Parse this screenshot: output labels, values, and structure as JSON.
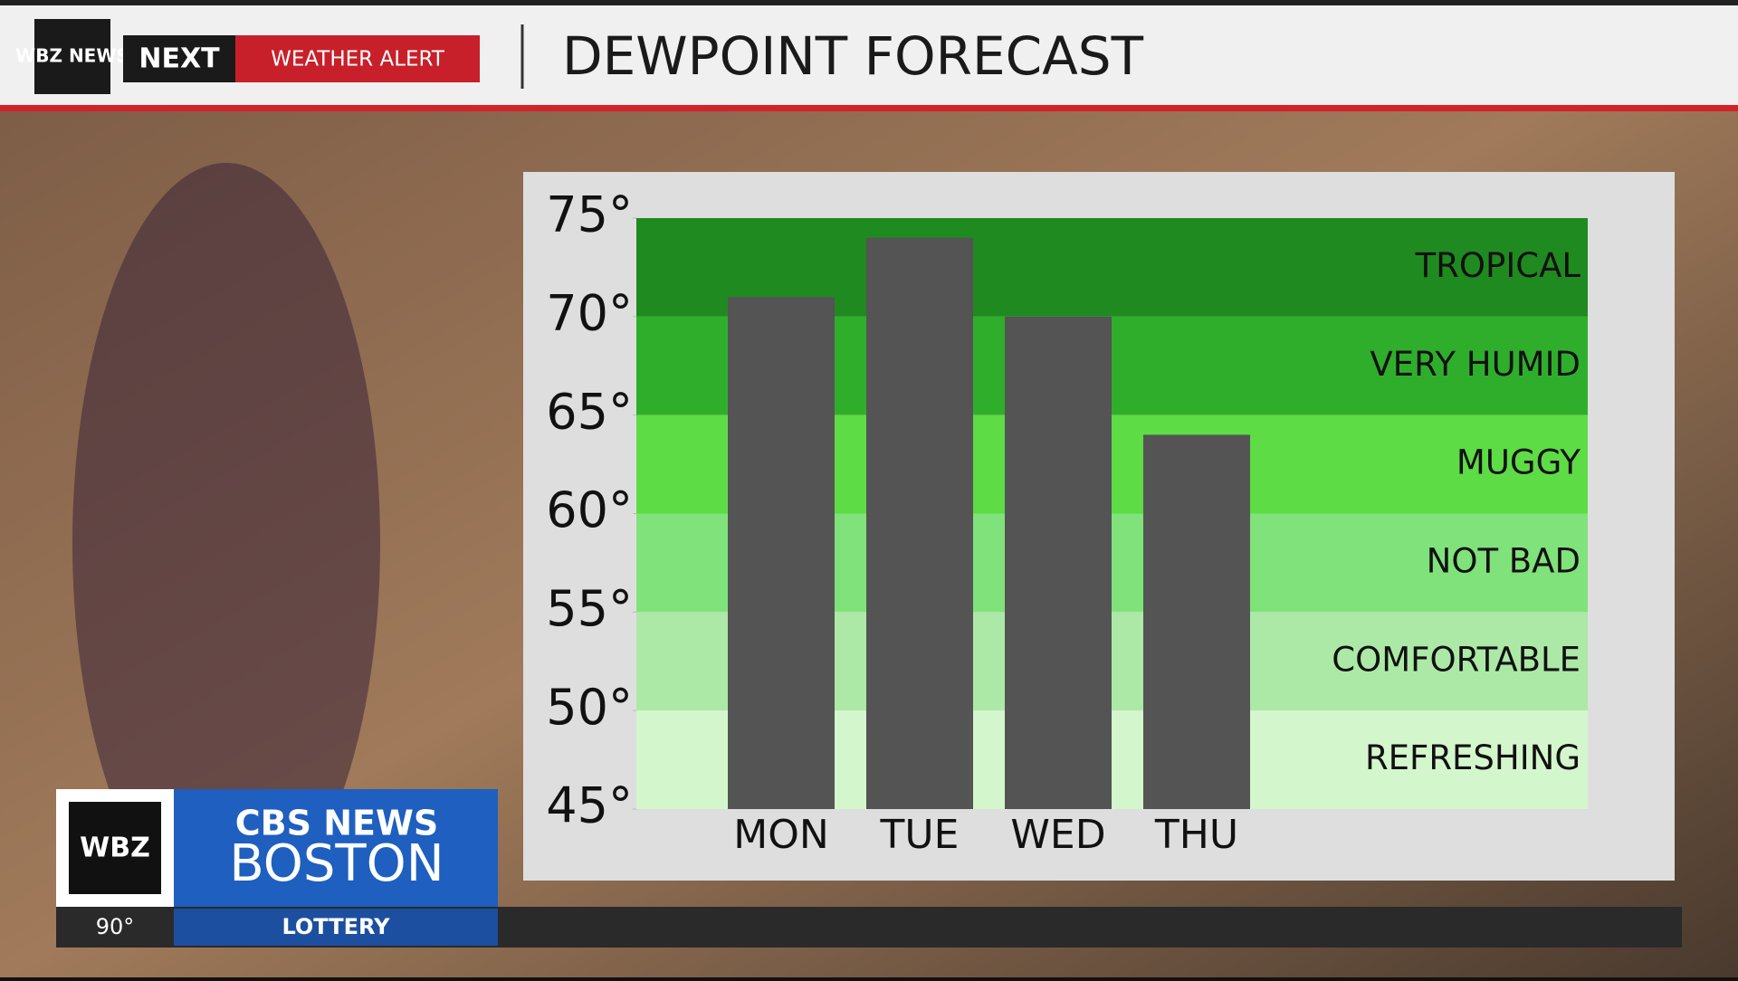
{
  "header": {
    "logo": "WBZ NEWS",
    "brand": "NEXT",
    "alert": "WEATHER ALERT"
  },
  "chart_data": {
    "type": "bar",
    "title": "DEWPOINT FORECAST",
    "categories": [
      "MON",
      "TUE",
      "WED",
      "THU"
    ],
    "values": [
      71,
      74,
      70,
      64
    ],
    "color": "#545454",
    "ylim": [
      45,
      75
    ],
    "yticks": [
      {
        "value": 45,
        "label": "45°"
      },
      {
        "value": 50,
        "label": "50°"
      },
      {
        "value": 55,
        "label": "55°"
      },
      {
        "value": 60,
        "label": "60°"
      },
      {
        "value": 65,
        "label": "65°"
      },
      {
        "value": 70,
        "label": "70°"
      },
      {
        "value": 75,
        "label": "75°"
      }
    ],
    "bands": [
      {
        "label": "TROPICAL",
        "from": 70,
        "to": 75,
        "color": "#1f8a1f"
      },
      {
        "label": "VERY HUMID",
        "from": 65,
        "to": 70,
        "color": "#2fae2c"
      },
      {
        "label": "MUGGY",
        "from": 60,
        "to": 65,
        "color": "#5ddc45"
      },
      {
        "label": "NOT BAD",
        "from": 55,
        "to": 60,
        "color": "#80e27a"
      },
      {
        "label": "COMFORTABLE",
        "from": 50,
        "to": 55,
        "color": "#ade9a6"
      },
      {
        "label": "REFRESHING",
        "from": 45,
        "to": 50,
        "color": "#d4f6cc"
      }
    ]
  },
  "lower_third": {
    "station": "WBZ",
    "network": "CBS NEWS",
    "city": "BOSTON",
    "temperature": "90°",
    "ticker": "LOTTERY"
  }
}
